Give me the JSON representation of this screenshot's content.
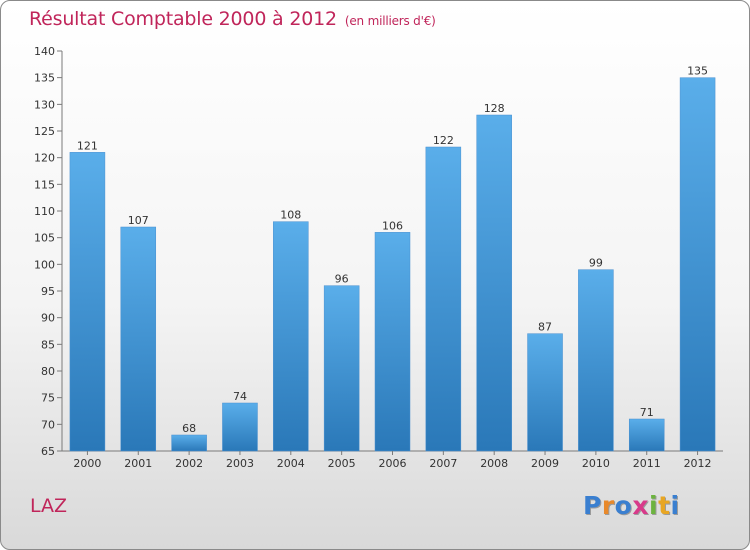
{
  "title": "Résultat Comptable 2000 à 2012",
  "unit": "(en milliers d'€)",
  "commune": "LAZ",
  "logo": {
    "letters": [
      "P",
      "r",
      "o",
      "x",
      "i",
      "t",
      "i"
    ],
    "colors": [
      "#3a7fd0",
      "#e8892b",
      "#3a7fd0",
      "#d83a8a",
      "#6cb33f",
      "#e8a623",
      "#3a7fd0"
    ]
  },
  "colors": {
    "bar_light": "#5aaeea",
    "bar_dark": "#2a78b8",
    "axis": "#7a7a7a",
    "text": "#333333",
    "title": "#c0255a"
  },
  "chart_data": {
    "type": "bar",
    "title": "Résultat Comptable 2000 à 2012",
    "categories": [
      "2000",
      "2001",
      "2002",
      "2003",
      "2004",
      "2005",
      "2006",
      "2007",
      "2008",
      "2009",
      "2010",
      "2011",
      "2012"
    ],
    "values": [
      121,
      107,
      68,
      74,
      108,
      96,
      106,
      122,
      128,
      87,
      99,
      71,
      135
    ],
    "ylim": [
      65,
      140
    ],
    "yticks": [
      65,
      70,
      75,
      80,
      85,
      90,
      95,
      100,
      105,
      110,
      115,
      120,
      125,
      130,
      135,
      140
    ],
    "xlabel": "",
    "ylabel": "",
    "grid": false,
    "legend": "none"
  }
}
